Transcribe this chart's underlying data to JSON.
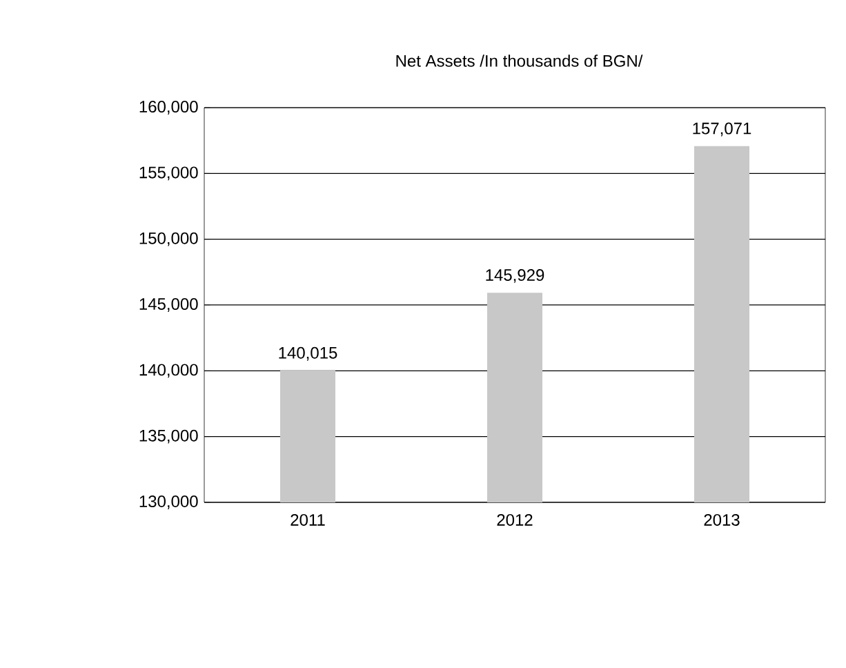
{
  "chart_data": {
    "type": "bar",
    "title": "Net Assets /In thousands of BGN/",
    "categories": [
      "2011",
      "2012",
      "2013"
    ],
    "values": [
      140015,
      145929,
      157071
    ],
    "value_labels": [
      "140,015",
      "145,929",
      "157,071"
    ],
    "color": "#c8c8c8",
    "ylim": [
      130000,
      160000
    ],
    "yticks": [
      {
        "value": 130000,
        "label": "130,000"
      },
      {
        "value": 135000,
        "label": "135,000"
      },
      {
        "value": 140000,
        "label": "140,000"
      },
      {
        "value": 145000,
        "label": "145,000"
      },
      {
        "value": 150000,
        "label": "150,000"
      },
      {
        "value": 155000,
        "label": "155,000"
      },
      {
        "value": 160000,
        "label": "160,000"
      }
    ],
    "grid": "y"
  }
}
